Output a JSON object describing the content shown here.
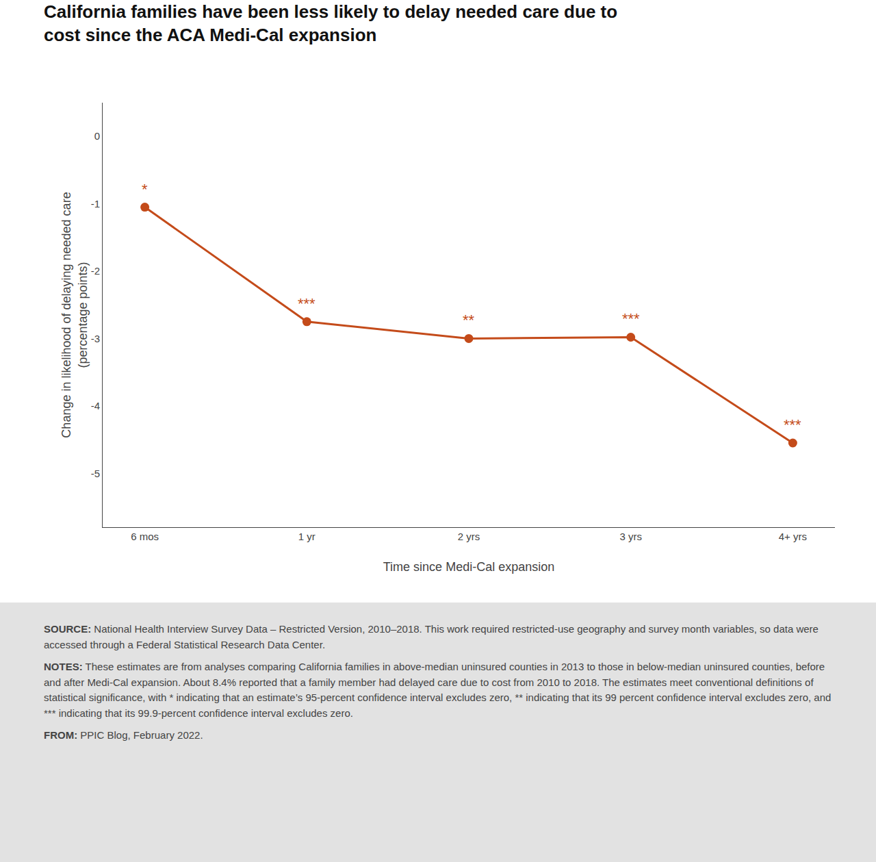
{
  "chart_data": {
    "type": "line",
    "title": "California families have been less likely to delay needed care due to\ncost since the ACA Medi-Cal expansion",
    "x_label": "Time since Medi-Cal expansion",
    "y_label": "Change in likelihood of delaying needed care\n(percentage points)",
    "categories": [
      "6 mos",
      "1 yr",
      "2 yrs",
      "3 yrs",
      "4+ yrs"
    ],
    "values": [
      -1.05,
      -2.75,
      -3.0,
      -2.98,
      -4.55
    ],
    "color": "#C44B1A",
    "marker": "circle",
    "line_style": "solid",
    "annotations": [
      {
        "category": "6 mos",
        "text": "*"
      },
      {
        "category": "1 yr",
        "text": "***"
      },
      {
        "category": "2 yrs",
        "text": "**"
      },
      {
        "category": "3 yrs",
        "text": "***"
      },
      {
        "category": "4+ yrs",
        "text": "***"
      }
    ],
    "footnotes": [
      "SOURCE: National Health Interview Survey Data – Restricted Version, 2010–2018. This work required restricted-use geography and survey month variables, so data were accessed through a Federal Statistical Research Data Center.",
      "NOTES: These estimates are from analyses comparing California families in above-median uninsured counties in 2013 to those in below-median uninsured counties, before and after Medi-Cal expansion. About 8.4% reported that a family member had delayed care due to cost from 2010 to 2018. The estimates meet conventional definitions of statistical significance, with * indicating that an estimate’s 95-percent confidence interval excludes zero, ** indicating that its 99 percent confidence interval excludes zero, and *** indicating that its 99.9-percent confidence interval excludes zero.",
      "FROM: PPIC Blog, February 2022."
    ],
    "ylim": [
      -5.8,
      0.5
    ],
    "yticks": [
      0,
      -1,
      -2,
      -3,
      -4,
      -5
    ],
    "grid": false
  }
}
